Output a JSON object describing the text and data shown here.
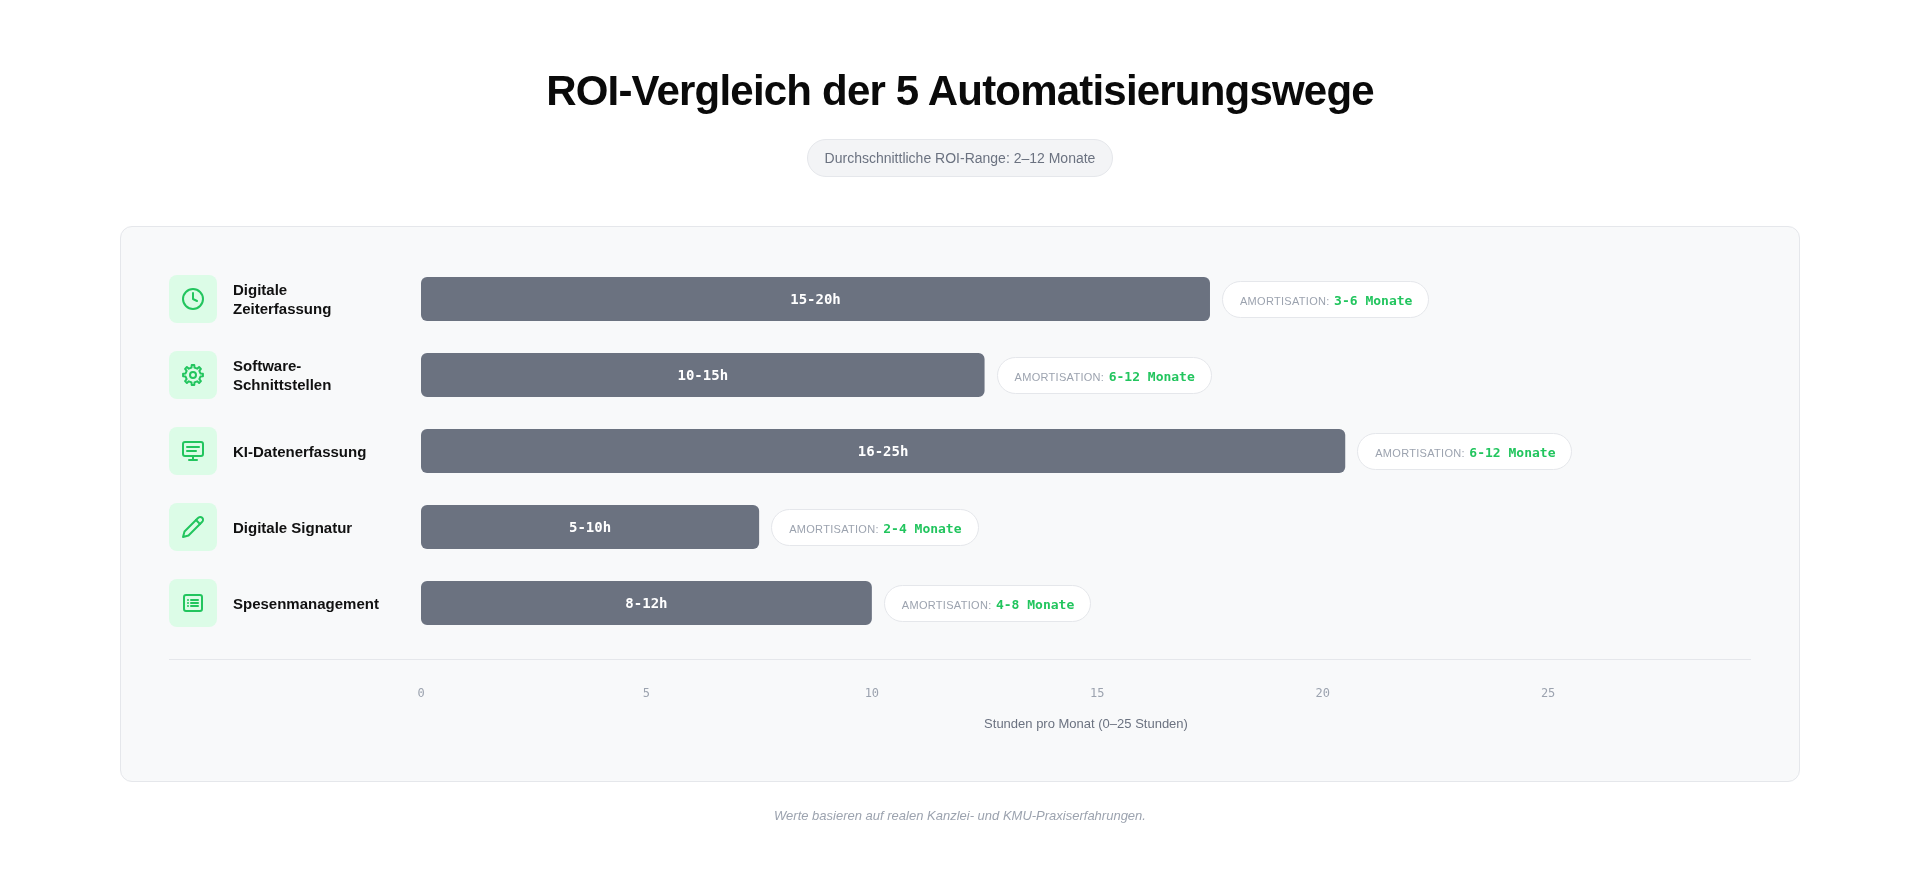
{
  "chart_data": {
    "type": "bar",
    "orientation": "horizontal",
    "title": "ROI-Vergleich der 5 Automatisierungswege",
    "subtitle": "Durchschnittliche ROI-Range: 2–12 Monate",
    "xlabel": "Stunden pro Monat (0–25 Stunden)",
    "categories": [
      "Digitale Zeiterfassung",
      "Software-Schnittstellen",
      "KI-Datenerfassung",
      "Digitale Signatur",
      "Spesenmanagement"
    ],
    "values": [
      17.5,
      12.5,
      20.5,
      7.5,
      10
    ],
    "color": "#6b7280",
    "value_labels": [
      "15-20h",
      "10-15h",
      "16-25h",
      "5-10h",
      "8-12h"
    ],
    "xlim": [
      0,
      29.5
    ],
    "xticks": [
      0,
      5,
      10,
      15,
      20,
      25
    ],
    "annotations": [
      {
        "text": "AMORTISATION: 3-6 Monate",
        "x": 17.5,
        "y": "Digitale Zeiterfassung"
      },
      {
        "text": "AMORTISATION: 6-12 Monate",
        "x": 12.5,
        "y": "Software-Schnittstellen"
      },
      {
        "text": "AMORTISATION: 6-12 Monate",
        "x": 20.5,
        "y": "KI-Datenerfassung"
      },
      {
        "text": "AMORTISATION: 2-4 Monate",
        "x": 7.5,
        "y": "Digitale Signatur"
      },
      {
        "text": "AMORTISATION: 4-8 Monate",
        "x": 10,
        "y": "Spesenmanagement"
      },
      "Werte basieren auf realen Kanzlei- und KMU-Praxiserfahrungen."
    ]
  }
}
